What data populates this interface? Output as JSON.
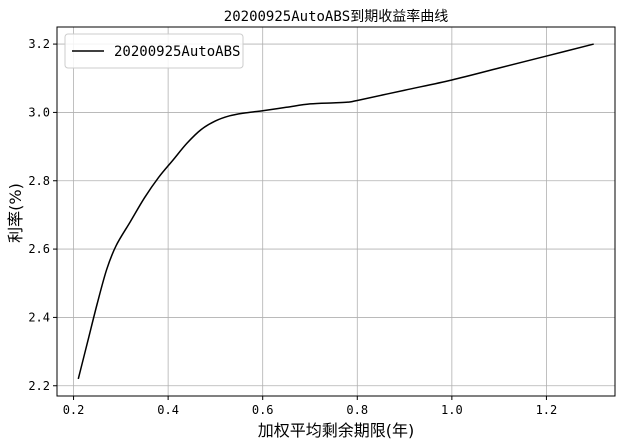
{
  "chart_data": {
    "type": "line",
    "title": "20200925AutoABS到期收益率曲线",
    "xlabel": "加权平均剩余期限(年)",
    "ylabel": "利率(%)",
    "xlim": [
      0.165,
      1.345
    ],
    "ylim": [
      2.17,
      3.25
    ],
    "xticks": [
      0.2,
      0.4,
      0.6,
      0.8,
      1.0,
      1.2
    ],
    "xtick_labels": [
      "0.2",
      "0.4",
      "0.6",
      "0.8",
      "1.0",
      "1.2"
    ],
    "yticks": [
      2.2,
      2.4,
      2.6,
      2.8,
      3.0,
      3.2
    ],
    "ytick_labels": [
      "2.2",
      "2.4",
      "2.6",
      "2.8",
      "3.0",
      "3.2"
    ],
    "grid": true,
    "legend_position": "top-left",
    "series": [
      {
        "name": "20200925AutoABS",
        "color": "#000000",
        "x": [
          0.21,
          0.23,
          0.25,
          0.27,
          0.29,
          0.32,
          0.35,
          0.38,
          0.41,
          0.44,
          0.47,
          0.5,
          0.53,
          0.56,
          0.6,
          0.65,
          0.7,
          0.75,
          0.78,
          0.8,
          0.9,
          1.0,
          1.1,
          1.2,
          1.3
        ],
        "y": [
          2.22,
          2.33,
          2.44,
          2.54,
          2.61,
          2.68,
          2.75,
          2.81,
          2.86,
          2.91,
          2.95,
          2.975,
          2.99,
          2.998,
          3.005,
          3.015,
          3.025,
          3.028,
          3.03,
          3.035,
          3.065,
          3.095,
          3.13,
          3.165,
          3.2
        ]
      }
    ]
  }
}
